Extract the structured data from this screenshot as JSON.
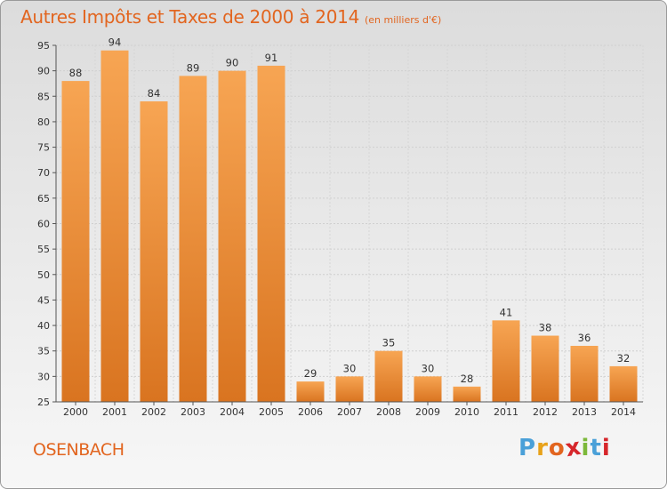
{
  "title": "Autres Impôts et Taxes de 2000 à 2014",
  "subtitle": "(en milliers d'€)",
  "commune": "OSENBACH",
  "logo": {
    "letters": [
      "P",
      "r",
      "o",
      "x",
      "i",
      "t",
      "i"
    ],
    "colors": [
      "#4aa0d8",
      "#e8a21a",
      "#e2651f",
      "#d6262b",
      "#7cb83a",
      "#4aa0d8",
      "#d6262b"
    ]
  },
  "colors": {
    "accent": "#e2651f",
    "bar_light": "#f7a553",
    "bar_dark": "#d97420"
  },
  "chart_data": {
    "type": "bar",
    "categories": [
      "2000",
      "2001",
      "2002",
      "2003",
      "2004",
      "2005",
      "2006",
      "2007",
      "2008",
      "2009",
      "2010",
      "2011",
      "2012",
      "2013",
      "2014"
    ],
    "values": [
      88,
      94,
      84,
      89,
      90,
      91,
      29,
      30,
      35,
      30,
      28,
      41,
      38,
      36,
      32
    ],
    "ylim": [
      25,
      95
    ],
    "yticks": [
      25,
      30,
      35,
      40,
      45,
      50,
      55,
      60,
      65,
      70,
      75,
      80,
      85,
      90,
      95
    ],
    "grid": true
  }
}
